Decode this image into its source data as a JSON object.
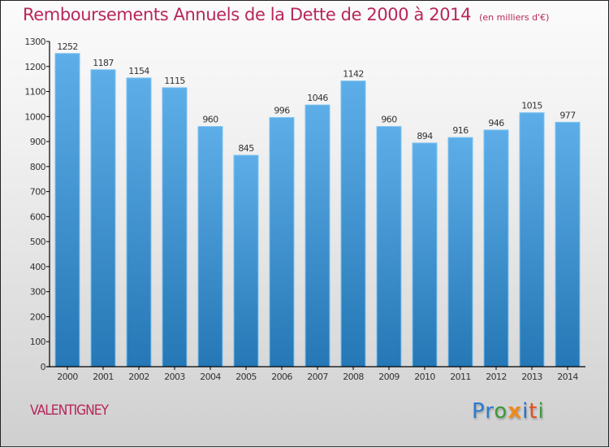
{
  "header": {
    "title": "Remboursements Annuels de la Dette de 2000 à 2014",
    "subtitle": "(en milliers d'€)"
  },
  "footer": {
    "city": "VALENTIGNEY",
    "logo": {
      "letters": [
        "P",
        "r",
        "o",
        "x",
        "i",
        "t",
        "i"
      ],
      "colors": [
        "#2a7bd0",
        "#2a7bd0",
        "#3a9a3a",
        "#f08a1c",
        "#1f6fd0",
        "#e2501f",
        "#3a9a3a"
      ]
    }
  },
  "colors": {
    "title": "#b8265b",
    "bar_top": "#5daee8",
    "bar_bottom": "#2577b5",
    "bar_edge": "#7cc2f2"
  },
  "chart_data": {
    "type": "bar",
    "title": "Remboursements Annuels de la Dette de 2000 à 2014",
    "subtitle": "(en milliers d'€)",
    "xlabel": "",
    "ylabel": "",
    "categories": [
      "2000",
      "2001",
      "2002",
      "2003",
      "2004",
      "2005",
      "2006",
      "2007",
      "2008",
      "2009",
      "2010",
      "2011",
      "2012",
      "2013",
      "2014"
    ],
    "values": [
      1252,
      1187,
      1154,
      1115,
      960,
      845,
      996,
      1046,
      1142,
      960,
      894,
      916,
      946,
      1015,
      977
    ],
    "ylim": [
      0,
      1300
    ],
    "yticks": [
      0,
      100,
      200,
      300,
      400,
      500,
      600,
      700,
      800,
      900,
      1000,
      1100,
      1200,
      1300
    ],
    "data_labels": true,
    "grid": false,
    "legend": "none"
  }
}
